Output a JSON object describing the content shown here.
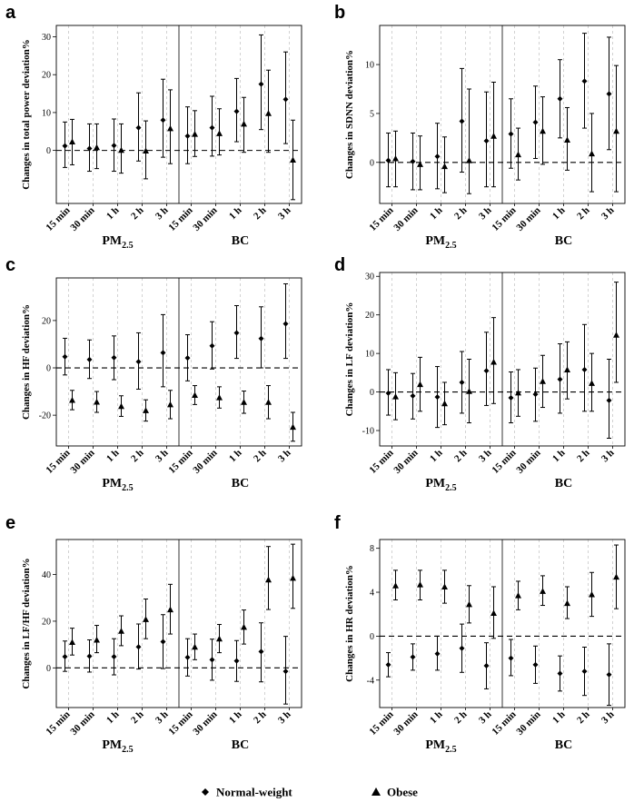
{
  "chart_data": [
    {
      "panel": "a",
      "type": "errorbar",
      "ylabel": "Changes in total power deviation%",
      "ylim": [
        -14,
        33
      ],
      "yticks": [
        0,
        10,
        20,
        30
      ],
      "xticks": [
        "15 min",
        "30 min",
        "1 h",
        "2 h",
        "3 h",
        "15 min",
        "30 min",
        "1 h",
        "2 h",
        "3 h"
      ],
      "groups": [
        "PM2.5",
        "BC"
      ],
      "series": [
        {
          "name": "Normal-weight",
          "marker": "diamond",
          "values": [
            {
              "est": 1.2,
              "lo": -4.5,
              "hi": 7.5
            },
            {
              "est": 0.5,
              "lo": -5.5,
              "hi": 7
            },
            {
              "est": 1.3,
              "lo": -5.5,
              "hi": 8.3
            },
            {
              "est": 6,
              "lo": -2.8,
              "hi": 15.2
            },
            {
              "est": 8,
              "lo": -1.8,
              "hi": 18.8
            },
            {
              "est": 3.8,
              "lo": -3.5,
              "hi": 11.5
            },
            {
              "est": 6,
              "lo": -1.5,
              "hi": 14.3
            },
            {
              "est": 10.3,
              "lo": 2.3,
              "hi": 19
            },
            {
              "est": 17.5,
              "lo": 5.5,
              "hi": 30.5
            },
            {
              "est": 13.5,
              "lo": 1.8,
              "hi": 26
            }
          ]
        },
        {
          "name": "Obese",
          "marker": "triangle",
          "values": [
            {
              "est": 2.3,
              "lo": -3.8,
              "hi": 8.2
            },
            {
              "est": 0.8,
              "lo": -4.8,
              "hi": 7
            },
            {
              "est": 0.1,
              "lo": -6,
              "hi": 7
            },
            {
              "est": -0.1,
              "lo": -7.5,
              "hi": 7.8
            },
            {
              "est": 5.8,
              "lo": -3.5,
              "hi": 16
            },
            {
              "est": 4.3,
              "lo": -1.6,
              "hi": 10.5
            },
            {
              "est": 4.5,
              "lo": -1.2,
              "hi": 11
            },
            {
              "est": 7,
              "lo": -0.5,
              "hi": 14
            },
            {
              "est": 9.8,
              "lo": -0.5,
              "hi": 21.2
            },
            {
              "est": -2.5,
              "lo": -13,
              "hi": 8
            }
          ]
        }
      ]
    },
    {
      "panel": "b",
      "type": "errorbar",
      "ylabel": "Changes in SDNN deviation%",
      "ylim": [
        -4.2,
        14
      ],
      "yticks": [
        0,
        5,
        10
      ],
      "xticks": [
        "15 min",
        "30 min",
        "1 h",
        "2 h",
        "3 h",
        "15 min",
        "30 min",
        "1 h",
        "2 h",
        "3 h"
      ],
      "groups": [
        "PM2.5",
        "BC"
      ],
      "series": [
        {
          "name": "Normal-weight",
          "marker": "diamond",
          "values": [
            {
              "est": 0.2,
              "lo": -2.5,
              "hi": 3
            },
            {
              "est": 0.1,
              "lo": -2.8,
              "hi": 3
            },
            {
              "est": 0.6,
              "lo": -2.7,
              "hi": 4
            },
            {
              "est": 4.2,
              "lo": -1,
              "hi": 9.6
            },
            {
              "est": 2.2,
              "lo": -2.5,
              "hi": 7.2
            },
            {
              "est": 2.9,
              "lo": -0.6,
              "hi": 6.5
            },
            {
              "est": 4.1,
              "lo": 0.4,
              "hi": 7.8
            },
            {
              "est": 6.5,
              "lo": 2.5,
              "hi": 10.5
            },
            {
              "est": 8.3,
              "lo": 3.5,
              "hi": 13.2
            },
            {
              "est": 7,
              "lo": 1.3,
              "hi": 12.8
            }
          ]
        },
        {
          "name": "Obese",
          "marker": "triangle",
          "values": [
            {
              "est": 0.4,
              "lo": -2.5,
              "hi": 3.2
            },
            {
              "est": -0.2,
              "lo": -2.8,
              "hi": 2.7
            },
            {
              "est": -0.4,
              "lo": -3.1,
              "hi": 2.6
            },
            {
              "est": 0.2,
              "lo": -3.2,
              "hi": 7.5
            },
            {
              "est": 2.7,
              "lo": -2.5,
              "hi": 8.2
            },
            {
              "est": 0.8,
              "lo": -1.8,
              "hi": 3.5
            },
            {
              "est": 3.2,
              "lo": -0.2,
              "hi": 6.7
            },
            {
              "est": 2.3,
              "lo": -0.8,
              "hi": 5.6
            },
            {
              "est": 0.9,
              "lo": -3,
              "hi": 5
            },
            {
              "est": 3.2,
              "lo": -3,
              "hi": 9.9
            }
          ]
        }
      ]
    },
    {
      "panel": "c",
      "type": "errorbar",
      "ylabel": "Changes in HF deviation%",
      "ylim": [
        -33,
        38
      ],
      "yticks": [
        -20,
        0,
        20
      ],
      "xticks": [
        "15 min",
        "30 min",
        "1 h",
        "2 h",
        "3 h",
        "15 min",
        "30 min",
        "1 h",
        "2 h",
        "3 h"
      ],
      "groups": [
        "PM2.5",
        "BC"
      ],
      "series": [
        {
          "name": "Normal-weight",
          "marker": "diamond",
          "values": [
            {
              "est": 4.7,
              "lo": -3,
              "hi": 12.5
            },
            {
              "est": 3.5,
              "lo": -4.5,
              "hi": 11.8
            },
            {
              "est": 4.3,
              "lo": -5,
              "hi": 13.5
            },
            {
              "est": 2.6,
              "lo": -9,
              "hi": 14.8
            },
            {
              "est": 6.4,
              "lo": -8,
              "hi": 22.5
            },
            {
              "est": 4.2,
              "lo": -5.5,
              "hi": 14
            },
            {
              "est": 9.3,
              "lo": -0.5,
              "hi": 19.5
            },
            {
              "est": 14.8,
              "lo": 4,
              "hi": 26.3
            },
            {
              "est": 12.4,
              "lo": 0,
              "hi": 25.8
            },
            {
              "est": 18.6,
              "lo": 4,
              "hi": 35.5
            }
          ]
        },
        {
          "name": "Obese",
          "marker": "triangle",
          "values": [
            {
              "est": -13.6,
              "lo": -17.7,
              "hi": -9.5
            },
            {
              "est": -14.4,
              "lo": -18.8,
              "hi": -10
            },
            {
              "est": -16.2,
              "lo": -20.5,
              "hi": -11.8
            },
            {
              "est": -18,
              "lo": -22.5,
              "hi": -13.5
            },
            {
              "est": -15.5,
              "lo": -21.5,
              "hi": -9.5
            },
            {
              "est": -11.5,
              "lo": -15.5,
              "hi": -7.5
            },
            {
              "est": -12.5,
              "lo": -17,
              "hi": -8
            },
            {
              "est": -14.5,
              "lo": -19.2,
              "hi": -9.8
            },
            {
              "est": -14.5,
              "lo": -21.5,
              "hi": -7.5
            },
            {
              "est": -25,
              "lo": -31,
              "hi": -18.8
            }
          ]
        }
      ]
    },
    {
      "panel": "d",
      "type": "errorbar",
      "ylabel": "Changes in LF deviation%",
      "ylim": [
        -14,
        31
      ],
      "yticks": [
        -10,
        0,
        10,
        20,
        30
      ],
      "xticks": [
        "15 min",
        "30 min",
        "1 h",
        "2 h",
        "3 h",
        "15 min",
        "30 min",
        "1 h",
        "2 h",
        "3 h"
      ],
      "groups": [
        "PM2.5",
        "BC"
      ],
      "series": [
        {
          "name": "Normal-weight",
          "marker": "diamond",
          "values": [
            {
              "est": -0.3,
              "lo": -6,
              "hi": 5.8
            },
            {
              "est": -1,
              "lo": -7,
              "hi": 4.8
            },
            {
              "est": -1.3,
              "lo": -9.2,
              "hi": 6.6
            },
            {
              "est": 2.5,
              "lo": -5.5,
              "hi": 10.5
            },
            {
              "est": 5.5,
              "lo": -3.5,
              "hi": 15.5
            },
            {
              "est": -1.5,
              "lo": -8,
              "hi": 5.2
            },
            {
              "est": -0.6,
              "lo": -7.6,
              "hi": 6.2
            },
            {
              "est": 3.3,
              "lo": -5.5,
              "hi": 12.5
            },
            {
              "est": 5.8,
              "lo": -5,
              "hi": 17.5
            },
            {
              "est": -2.2,
              "lo": -12,
              "hi": 8.5
            }
          ]
        },
        {
          "name": "Obese",
          "marker": "triangle",
          "values": [
            {
              "est": -1.2,
              "lo": -7.2,
              "hi": 5
            },
            {
              "est": 2,
              "lo": -5,
              "hi": 9
            },
            {
              "est": -3,
              "lo": -8.5,
              "hi": 2.5
            },
            {
              "est": 0.2,
              "lo": -8,
              "hi": 8.5
            },
            {
              "est": 7.8,
              "lo": -3,
              "hi": 19.3
            },
            {
              "est": -0.2,
              "lo": -6.3,
              "hi": 5.8
            },
            {
              "est": 2.8,
              "lo": -4,
              "hi": 9.5
            },
            {
              "est": 5.8,
              "lo": -1.8,
              "hi": 13
            },
            {
              "est": 2.3,
              "lo": -5,
              "hi": 10
            },
            {
              "est": 14.8,
              "lo": 2.5,
              "hi": 28.5
            }
          ]
        }
      ]
    },
    {
      "panel": "e",
      "type": "errorbar",
      "ylabel": "Changes in LF/HF deviation%",
      "ylim": [
        -17,
        55
      ],
      "yticks": [
        0,
        20,
        40
      ],
      "xticks": [
        "15 min",
        "30 min",
        "1 h",
        "2 h",
        "3 h",
        "15 min",
        "30 min",
        "1 h",
        "2 h",
        "3 h"
      ],
      "groups": [
        "PM2.5",
        "BC"
      ],
      "series": [
        {
          "name": "Normal-weight",
          "marker": "diamond",
          "values": [
            {
              "est": 4.8,
              "lo": -1.5,
              "hi": 11.5
            },
            {
              "est": 5,
              "lo": -1.8,
              "hi": 12
            },
            {
              "est": 4.8,
              "lo": -3,
              "hi": 12.5
            },
            {
              "est": 9,
              "lo": -0.5,
              "hi": 18.8
            },
            {
              "est": 11.2,
              "lo": -0.3,
              "hi": 22.8
            },
            {
              "est": 4.5,
              "lo": -3.5,
              "hi": 12.5
            },
            {
              "est": 3.5,
              "lo": -5.3,
              "hi": 12.3
            },
            {
              "est": 3,
              "lo": -5.8,
              "hi": 11.7
            },
            {
              "est": 7,
              "lo": -6,
              "hi": 19.3
            },
            {
              "est": -1.5,
              "lo": -15.5,
              "hi": 13.5
            }
          ]
        },
        {
          "name": "Obese",
          "marker": "triangle",
          "values": [
            {
              "est": 11,
              "lo": 5.5,
              "hi": 17
            },
            {
              "est": 12,
              "lo": 6.5,
              "hi": 18.2
            },
            {
              "est": 15.8,
              "lo": 9.5,
              "hi": 22.3
            },
            {
              "est": 20.8,
              "lo": 12.5,
              "hi": 29.5
            },
            {
              "est": 25,
              "lo": 14.5,
              "hi": 35.8
            },
            {
              "est": 9,
              "lo": 3.5,
              "hi": 14.5
            },
            {
              "est": 12.5,
              "lo": 6.5,
              "hi": 18.6
            },
            {
              "est": 17.5,
              "lo": 10.2,
              "hi": 24.8
            },
            {
              "est": 37.8,
              "lo": 25,
              "hi": 52
            },
            {
              "est": 38.5,
              "lo": 25.5,
              "hi": 53
            }
          ]
        }
      ]
    },
    {
      "panel": "f",
      "type": "errorbar",
      "ylabel": "Changes in HR deviation%",
      "ylim": [
        -6.5,
        8.8
      ],
      "yticks": [
        -4,
        0,
        4,
        8
      ],
      "xticks": [
        "15 min",
        "30 min",
        "1 h",
        "2 h",
        "3 h",
        "15 min",
        "30 min",
        "1 h",
        "2 h",
        "3 h"
      ],
      "groups": [
        "PM2.5",
        "BC"
      ],
      "series": [
        {
          "name": "Normal-weight",
          "marker": "diamond",
          "values": [
            {
              "est": -2.6,
              "lo": -3.7,
              "hi": -1.5
            },
            {
              "est": -1.9,
              "lo": -3.1,
              "hi": -0.7
            },
            {
              "est": -1.6,
              "lo": -3.1,
              "hi": 0
            },
            {
              "est": -1.1,
              "lo": -3.3,
              "hi": 1.1
            },
            {
              "est": -2.7,
              "lo": -4.8,
              "hi": -0.6
            },
            {
              "est": -2,
              "lo": -3.6,
              "hi": -0.3
            },
            {
              "est": -2.6,
              "lo": -4.3,
              "hi": -0.9
            },
            {
              "est": -3.4,
              "lo": -5,
              "hi": -1.8
            },
            {
              "est": -3.2,
              "lo": -5.4,
              "hi": -1
            },
            {
              "est": -3.5,
              "lo": -6.3,
              "hi": -0.7
            }
          ]
        },
        {
          "name": "Obese",
          "marker": "triangle",
          "values": [
            {
              "est": 4.6,
              "lo": 3.3,
              "hi": 6
            },
            {
              "est": 4.7,
              "lo": 3.3,
              "hi": 6
            },
            {
              "est": 4.5,
              "lo": 3,
              "hi": 6
            },
            {
              "est": 2.9,
              "lo": 1.2,
              "hi": 4.6
            },
            {
              "est": 2.1,
              "lo": -0.2,
              "hi": 4.5
            },
            {
              "est": 3.7,
              "lo": 2.4,
              "hi": 5
            },
            {
              "est": 4.1,
              "lo": 2.8,
              "hi": 5.5
            },
            {
              "est": 3,
              "lo": 1.6,
              "hi": 4.5
            },
            {
              "est": 3.8,
              "lo": 1.8,
              "hi": 5.8
            },
            {
              "est": 5.4,
              "lo": 2.5,
              "hi": 8.3
            }
          ]
        }
      ]
    }
  ],
  "legend": {
    "items": [
      {
        "label": "Normal-weight",
        "marker": "diamond"
      },
      {
        "label": "Obese",
        "marker": "triangle"
      }
    ]
  }
}
